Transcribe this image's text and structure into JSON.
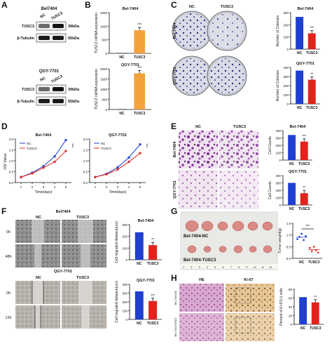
{
  "panels": {
    "A": {
      "label": "A",
      "top": {
        "title": "Bel7404",
        "lanes": [
          "NC",
          "TUSC3"
        ],
        "rows": [
          {
            "protein": "TUSC3",
            "mw": "39kDa"
          },
          {
            "protein": "β-Tubulin",
            "mw": "55kDa"
          }
        ]
      },
      "bottom": {
        "title": "QGY-7701",
        "lanes": [
          "NC",
          "TUSC3"
        ],
        "rows": [
          {
            "protein": "TUSC3",
            "mw": "39kDa"
          },
          {
            "protein": "β-Tubulin",
            "mw": "55kDa"
          }
        ]
      }
    },
    "B": {
      "label": "B",
      "top": {
        "title": "Bel-7404",
        "ylabel": "TUSC3 mRNA expression",
        "yticks": [
          "0",
          "500",
          "1000",
          "1500"
        ],
        "categories": [
          "NC",
          "TUSC3"
        ],
        "values": [
          1,
          850
        ],
        "ymax": 1500,
        "sig": "***"
      },
      "bottom": {
        "title": "QGY-7701",
        "ylabel": "TUSC3 mRNA expression",
        "yticks": [
          "0",
          "500",
          "1000",
          "1500",
          "2000"
        ],
        "categories": [
          "NC",
          "TUSC3"
        ],
        "values": [
          1,
          1780
        ],
        "ymax": 2000,
        "sig": "***"
      }
    },
    "C": {
      "label": "C",
      "cols": [
        "NC",
        "TUSC3"
      ],
      "rows": [
        "Bel-7404",
        "QGY-7701"
      ],
      "top": {
        "title": "Bel-7404",
        "ylabel": "Number of Colonies",
        "yticks": [
          "0",
          "100",
          "200",
          "300"
        ],
        "categories": [
          "NC",
          "TUSC3"
        ],
        "values": [
          265,
          130
        ],
        "ymax": 300,
        "sig": "***"
      },
      "bottom": {
        "title": "QGY-7701",
        "ylabel": "Number of Colonies",
        "yticks": [
          "0",
          "100",
          "200",
          "300",
          "400"
        ],
        "categories": [
          "NC",
          "TUSC3"
        ],
        "values": [
          365,
          265
        ],
        "ymax": 400,
        "sig": "**"
      }
    },
    "D": {
      "label": "D",
      "ylabel": "OD Value",
      "xlabel": "Time(days)",
      "left": {
        "title": "Bel-7404",
        "xticks": [
          "1",
          "2",
          "3",
          "4",
          "5"
        ],
        "yticks": [
          "0.0",
          "0.5",
          "1.0",
          "1.5",
          "2.0"
        ],
        "series": [
          {
            "name": "NC",
            "values": [
              0.25,
              0.45,
              0.75,
              1.2,
              1.95
            ]
          },
          {
            "name": "TUSC3",
            "values": [
              0.25,
              0.42,
              0.68,
              0.95,
              1.45
            ]
          }
        ],
        "sig": "***"
      },
      "right": {
        "title": "QGY-7701",
        "xticks": [
          "1",
          "2",
          "3",
          "4",
          "5"
        ],
        "yticks": [
          "0.0",
          "0.5",
          "1.0",
          "1.5",
          "2.0"
        ],
        "series": [
          {
            "name": "NC",
            "values": [
              0.25,
              0.4,
              0.7,
              1.15,
              1.75
            ]
          },
          {
            "name": "TUSC3",
            "values": [
              0.25,
              0.38,
              0.6,
              0.95,
              1.35
            ]
          }
        ],
        "sig": "***"
      }
    },
    "E": {
      "label": "E",
      "cols": [
        "NC",
        "TUSC3"
      ],
      "rows": [
        "Bel-7404",
        "QGY-7701"
      ],
      "top": {
        "title": "Bel-7404",
        "ylabel": "Cell Counts",
        "yticks": [
          "0",
          "100",
          "200",
          "300",
          "400"
        ],
        "categories": [
          "NC",
          "TUSC3"
        ],
        "values": [
          340,
          250
        ],
        "ymax": 400,
        "sig": "***"
      },
      "bottom": {
        "title": "QGY-7701",
        "ylabel": "Cell Counts",
        "yticks": [
          "0",
          "100",
          "200",
          "300",
          "400"
        ],
        "categories": [
          "NC",
          "TUSC3"
        ],
        "values": [
          300,
          160
        ],
        "ymax": 400,
        "sig": "**"
      }
    },
    "F": {
      "label": "F",
      "top": {
        "title": "Bel7404",
        "cols": [
          "NC",
          "TUSC3"
        ],
        "rows": [
          "0h",
          "48h"
        ]
      },
      "bottom": {
        "title": "QGY-7701",
        "cols": [
          "NC",
          "TUSC3"
        ],
        "rows": [
          "0h",
          "12h"
        ]
      },
      "chart_top": {
        "title": "Bel-7404",
        "ylabel": "Cell migrated distance(um)",
        "yticks": [
          "0",
          "100",
          "200",
          "300"
        ],
        "categories": [
          "NC",
          "TUSC3"
        ],
        "values": [
          235,
          125
        ],
        "ymax": 300,
        "sig": "**"
      },
      "chart_bottom": {
        "title": "QGY-7701",
        "ylabel": "Cell migrated distance(um)",
        "yticks": [
          "0",
          "100",
          "200",
          "300",
          "400"
        ],
        "categories": [
          "NC",
          "TUSC3"
        ],
        "values": [
          320,
          210
        ],
        "ymax": 400,
        "sig": "***"
      }
    },
    "G": {
      "label": "G",
      "groups": [
        "Bel-7404-NC",
        "Bel-7404-TUSC3"
      ],
      "ruler": [
        "1",
        "2",
        "3",
        "4",
        "5",
        "6",
        "7",
        "8",
        "9",
        "10",
        "11",
        "12"
      ],
      "chart": {
        "ylabel": "Tumor weight(g)",
        "yticks": [
          "0.0",
          "0.5",
          "1.0",
          "1.5"
        ],
        "categories": [
          "NC",
          "TUSC3"
        ],
        "sig": "***"
      }
    },
    "H": {
      "label": "H",
      "cols": [
        "HE",
        "Ki-67"
      ],
      "rows": [
        "Bel-7404-NC",
        "Bel-7404-TUSC3"
      ],
      "chart": {
        "ylabel": "Percent of Ki-67(+) cells",
        "yticks": [
          "0",
          "20",
          "40",
          "60",
          "80"
        ],
        "categories": [
          "NC",
          "TUSC3"
        ],
        "values": [
          62,
          50
        ],
        "ymax": 80,
        "sig": "**"
      }
    }
  },
  "colors": {
    "nc": "#1f3fd1",
    "tusc3": "#e0241c",
    "orange": "#f4a23a"
  }
}
